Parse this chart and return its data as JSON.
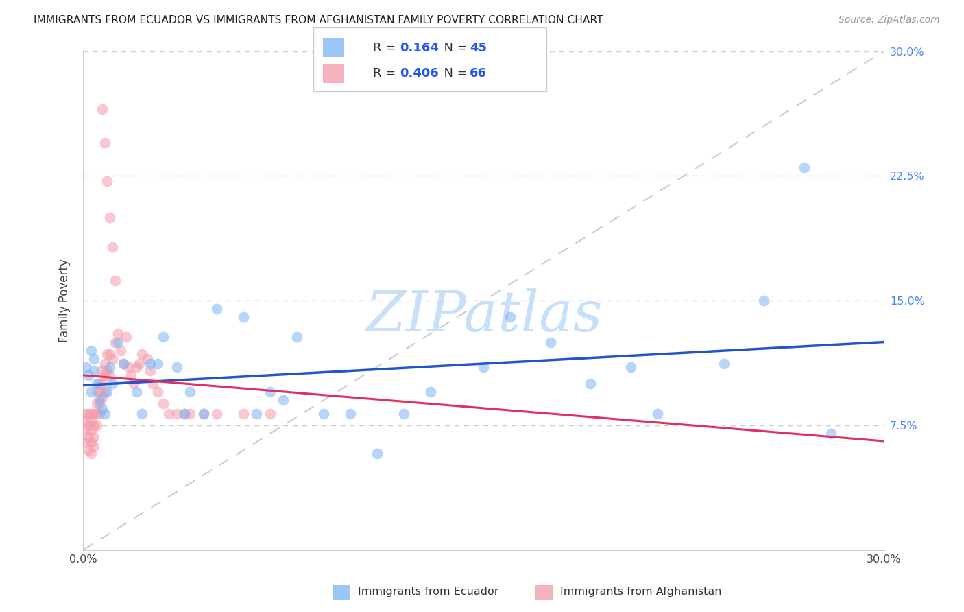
{
  "title": "IMMIGRANTS FROM ECUADOR VS IMMIGRANTS FROM AFGHANISTAN FAMILY POVERTY CORRELATION CHART",
  "source": "Source: ZipAtlas.com",
  "ylabel": "Family Poverty",
  "xlim": [
    0.0,
    0.3
  ],
  "ylim": [
    0.0,
    0.3
  ],
  "R_ecuador": 0.164,
  "N_ecuador": 45,
  "R_afghanistan": 0.406,
  "N_afghanistan": 66,
  "ecuador_color": "#7ab3f5",
  "afghanistan_color": "#f599aa",
  "ecuador_line_color": "#2255cc",
  "afghanistan_line_color": "#e03060",
  "watermark_color": "#c8dff8",
  "ytick_color": "#4488ff",
  "title_color": "#222222",
  "source_color": "#999999",
  "ecuador_x": [
    0.001,
    0.002,
    0.003,
    0.003,
    0.004,
    0.004,
    0.005,
    0.006,
    0.007,
    0.008,
    0.009,
    0.01,
    0.011,
    0.013,
    0.015,
    0.02,
    0.022,
    0.025,
    0.028,
    0.03,
    0.035,
    0.038,
    0.04,
    0.045,
    0.05,
    0.06,
    0.065,
    0.07,
    0.075,
    0.08,
    0.09,
    0.1,
    0.11,
    0.12,
    0.13,
    0.15,
    0.16,
    0.175,
    0.19,
    0.205,
    0.215,
    0.24,
    0.255,
    0.27,
    0.28
  ],
  "ecuador_y": [
    0.11,
    0.105,
    0.095,
    0.12,
    0.108,
    0.115,
    0.1,
    0.09,
    0.085,
    0.082,
    0.095,
    0.11,
    0.1,
    0.125,
    0.112,
    0.095,
    0.082,
    0.112,
    0.112,
    0.128,
    0.11,
    0.082,
    0.095,
    0.082,
    0.145,
    0.14,
    0.082,
    0.095,
    0.09,
    0.128,
    0.082,
    0.082,
    0.058,
    0.082,
    0.095,
    0.11,
    0.14,
    0.125,
    0.1,
    0.11,
    0.082,
    0.112,
    0.15,
    0.23,
    0.07
  ],
  "afghanistan_x": [
    0.001,
    0.001,
    0.001,
    0.001,
    0.002,
    0.002,
    0.002,
    0.002,
    0.003,
    0.003,
    0.003,
    0.003,
    0.003,
    0.004,
    0.004,
    0.004,
    0.004,
    0.005,
    0.005,
    0.005,
    0.005,
    0.006,
    0.006,
    0.006,
    0.006,
    0.007,
    0.007,
    0.007,
    0.008,
    0.008,
    0.008,
    0.009,
    0.009,
    0.01,
    0.01,
    0.011,
    0.012,
    0.013,
    0.014,
    0.015,
    0.016,
    0.017,
    0.018,
    0.019,
    0.02,
    0.021,
    0.022,
    0.024,
    0.025,
    0.026,
    0.028,
    0.03,
    0.032,
    0.035,
    0.038,
    0.04,
    0.045,
    0.05,
    0.06,
    0.07,
    0.007,
    0.008,
    0.009,
    0.01,
    0.011,
    0.012
  ],
  "afghanistan_y": [
    0.082,
    0.078,
    0.072,
    0.065,
    0.082,
    0.075,
    0.068,
    0.06,
    0.082,
    0.078,
    0.072,
    0.065,
    0.058,
    0.082,
    0.075,
    0.068,
    0.062,
    0.095,
    0.088,
    0.082,
    0.075,
    0.1,
    0.095,
    0.088,
    0.082,
    0.108,
    0.1,
    0.092,
    0.112,
    0.105,
    0.095,
    0.118,
    0.108,
    0.118,
    0.105,
    0.115,
    0.125,
    0.13,
    0.12,
    0.112,
    0.128,
    0.11,
    0.105,
    0.1,
    0.11,
    0.112,
    0.118,
    0.115,
    0.108,
    0.1,
    0.095,
    0.088,
    0.082,
    0.082,
    0.082,
    0.082,
    0.082,
    0.082,
    0.082,
    0.082,
    0.265,
    0.245,
    0.222,
    0.2,
    0.182,
    0.162
  ],
  "bottom_label1": "Immigrants from Ecuador",
  "bottom_label2": "Immigrants from Afghanistan"
}
